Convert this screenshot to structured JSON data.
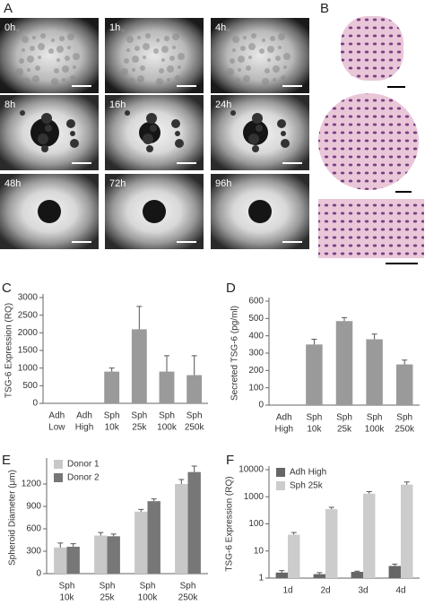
{
  "panel_a": {
    "label": "A",
    "images": [
      "0h",
      "1h",
      "4h",
      "8h",
      "16h",
      "24h",
      "48h",
      "72h",
      "96h"
    ]
  },
  "panel_b": {
    "label": "B"
  },
  "chart_data": [
    {
      "type": "bar",
      "panel": "C",
      "ylabel": "TSG-6 Expression (RQ)",
      "categories": [
        [
          "Adh",
          "Low"
        ],
        [
          "Adh",
          "High"
        ],
        [
          "Sph",
          "10k"
        ],
        [
          "Sph",
          "25k"
        ],
        [
          "Sph",
          "100k"
        ],
        [
          "Sph",
          "250k"
        ]
      ],
      "series": [
        {
          "color": "#9a9a9a",
          "values": [
            0,
            0,
            900,
            2100,
            900,
            800
          ],
          "errors": [
            0,
            0,
            100,
            650,
            450,
            550
          ]
        }
      ],
      "ylim": [
        0,
        3000
      ],
      "yticks": [
        0,
        500,
        1000,
        1500,
        2000,
        2500,
        3000
      ]
    },
    {
      "type": "bar",
      "panel": "D",
      "ylabel": "Secreted TSG-6 (pg/ml)",
      "categories": [
        [
          "Adh",
          "High"
        ],
        [
          "Sph",
          "10k"
        ],
        [
          "Sph",
          "25k"
        ],
        [
          "Sph",
          "100k"
        ],
        [
          "Sph",
          "250k"
        ]
      ],
      "series": [
        {
          "color": "#9a9a9a",
          "values": [
            0,
            350,
            485,
            380,
            235
          ],
          "errors": [
            0,
            30,
            20,
            30,
            25
          ]
        }
      ],
      "ylim": [
        0,
        600
      ],
      "yticks": [
        0,
        100,
        200,
        300,
        400,
        500,
        600
      ]
    },
    {
      "type": "bar",
      "panel": "E",
      "ylabel": "Spheroid Diameter (μm)",
      "categories": [
        [
          "Sph",
          "10k"
        ],
        [
          "Sph",
          "25k"
        ],
        [
          "Sph",
          "100k"
        ],
        [
          "Sph",
          "250k"
        ]
      ],
      "series": [
        {
          "name": "Donor 1",
          "color": "#c8c8c8",
          "values": [
            350,
            510,
            830,
            1200
          ],
          "errors": [
            60,
            40,
            30,
            60
          ]
        },
        {
          "name": "Donor 2",
          "color": "#777777",
          "values": [
            360,
            500,
            970,
            1360
          ],
          "errors": [
            40,
            30,
            30,
            80
          ]
        }
      ],
      "ylim": [
        0,
        1500
      ],
      "yticks": [
        0,
        300,
        600,
        900,
        1200
      ]
    },
    {
      "type": "bar",
      "panel": "F",
      "ylabel": "TSG-6 Expression (RQ)",
      "log_scale": true,
      "categories": [
        [
          "1d"
        ],
        [
          "2d"
        ],
        [
          "3d"
        ],
        [
          "4d"
        ]
      ],
      "series": [
        {
          "name": "Adh High",
          "color": "#666666",
          "values": [
            1.6,
            1.4,
            1.7,
            2.8
          ],
          "errors": [
            0.3,
            0.2,
            0.1,
            0.5
          ]
        },
        {
          "name": "Sph 25k",
          "color": "#cccccc",
          "values": [
            40,
            350,
            1300,
            2800
          ],
          "errors": [
            8,
            60,
            250,
            700
          ]
        }
      ],
      "ylim": [
        1,
        10000
      ],
      "yticks": [
        1,
        10,
        100,
        1000,
        10000
      ]
    }
  ]
}
